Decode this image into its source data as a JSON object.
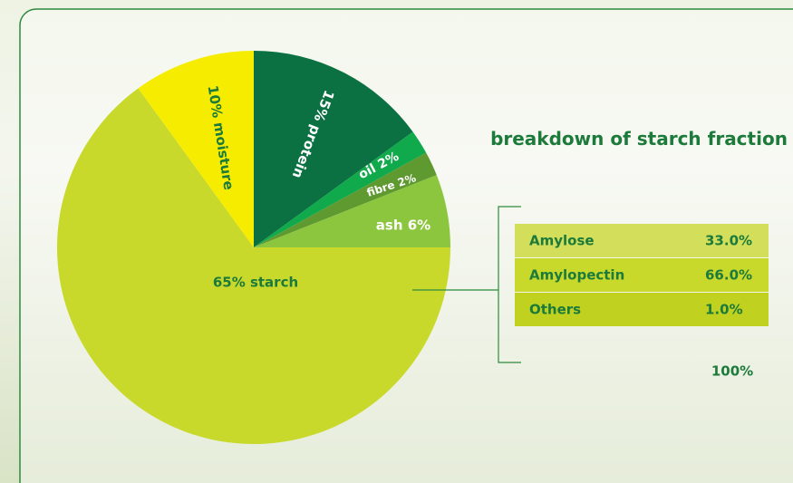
{
  "chart_data": {
    "type": "pie",
    "values": [
      15,
      2,
      2,
      6,
      65,
      10
    ],
    "value_labels": [
      "15% protein",
      "oil 2%",
      "fibre 2%",
      "ash 6%",
      "65% starch",
      "10% moisture"
    ],
    "colors": [
      "#0b7142",
      "#10a94b",
      "#5f9a30",
      "#8cc63e",
      "#c8d92b",
      "#f6ec00"
    ]
  },
  "table": {
    "title": "breakdown of starch fraction",
    "rows": [
      [
        "Amylose",
        "33.0%"
      ],
      [
        "Amylopectin",
        "66.0%"
      ],
      [
        "Others",
        "1.0%"
      ]
    ],
    "total": "100%"
  }
}
